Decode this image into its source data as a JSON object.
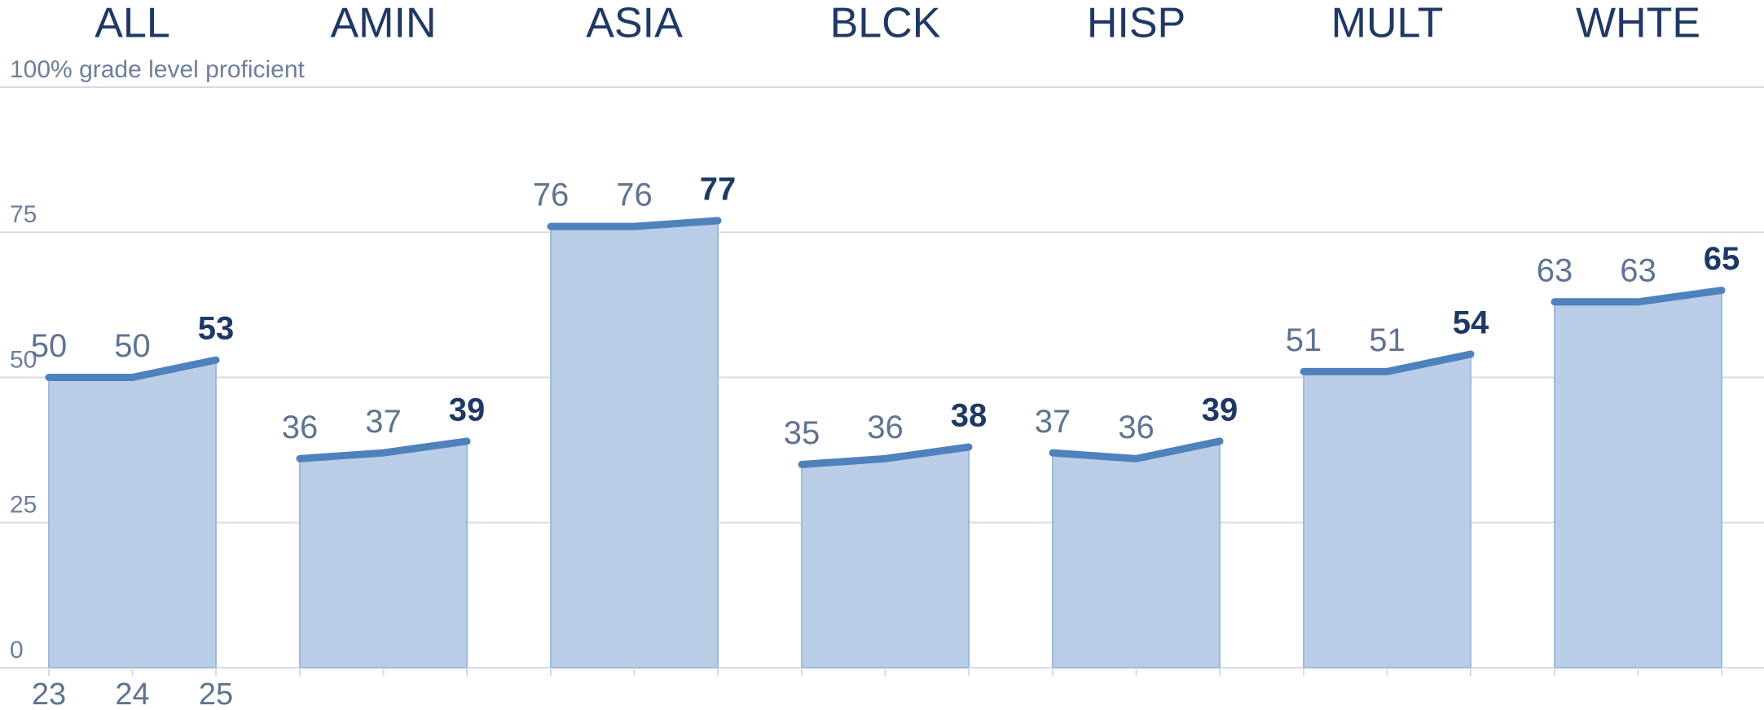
{
  "chart_data": {
    "type": "area",
    "categories": [
      "23",
      "24",
      "25"
    ],
    "series": [
      {
        "name": "ALL",
        "values": [
          50,
          50,
          53
        ]
      },
      {
        "name": "AMIN",
        "values": [
          36,
          37,
          39
        ]
      },
      {
        "name": "ASIA",
        "values": [
          76,
          76,
          77
        ]
      },
      {
        "name": "BLCK",
        "values": [
          35,
          36,
          38
        ]
      },
      {
        "name": "HISP",
        "values": [
          37,
          36,
          39
        ]
      },
      {
        "name": "MULT",
        "values": [
          51,
          51,
          54
        ]
      },
      {
        "name": "WHTE",
        "values": [
          63,
          63,
          65
        ]
      }
    ],
    "color": "#4f81bd",
    "fill": "#b9cde6",
    "ylim": [
      0,
      100
    ],
    "yticks": [
      0,
      25,
      50,
      75,
      {
        "value": 100,
        "label": "100% grade level proficient"
      }
    ],
    "grid": true
  }
}
